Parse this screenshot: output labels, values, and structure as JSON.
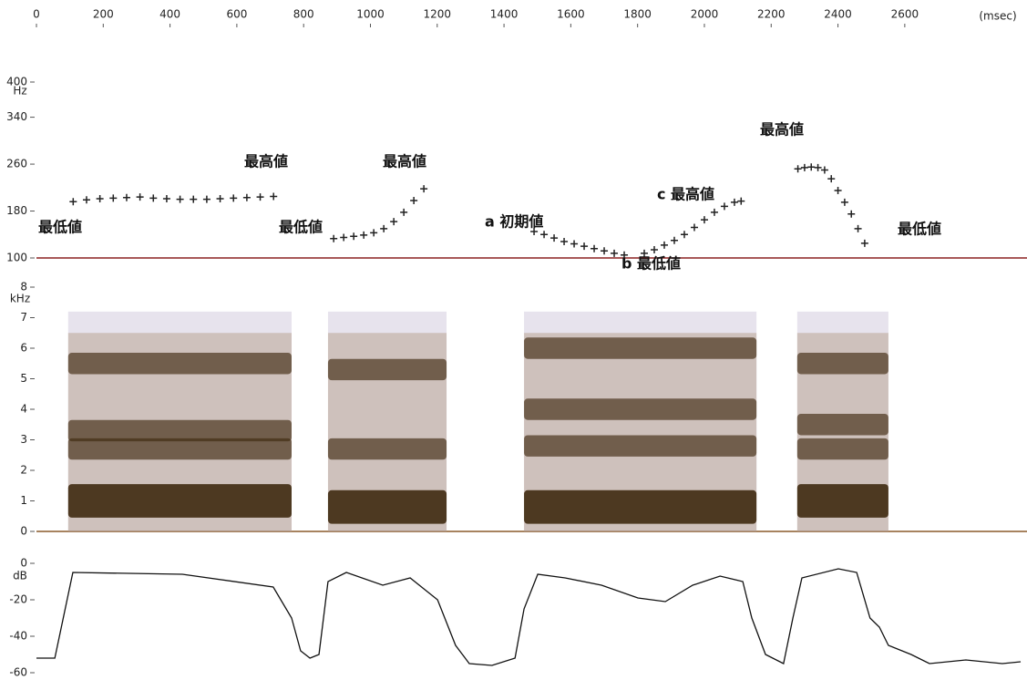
{
  "time_axis": {
    "xlim": [
      0,
      2966
    ],
    "xticks": [
      0,
      200,
      400,
      600,
      800,
      1000,
      1200,
      1400,
      1600,
      1800,
      2000,
      2200,
      2400,
      2600
    ],
    "unit": "(msec)"
  },
  "chart_data": [
    {
      "type": "scatter",
      "ylabel": "Hz",
      "ylim": [
        100,
        400
      ],
      "yticks": [
        100,
        180,
        260,
        340,
        400
      ],
      "series": [
        {
          "color": "#222222",
          "x": [
            110,
            150,
            190,
            230,
            270,
            310,
            350,
            390,
            430,
            470,
            510,
            550,
            590,
            630,
            670,
            710,
            890,
            920,
            950,
            980,
            1010,
            1040,
            1070,
            1100,
            1130,
            1160,
            1490,
            1520,
            1550,
            1580,
            1610,
            1640,
            1670,
            1700,
            1730,
            1760,
            1820,
            1850,
            1880,
            1910,
            1940,
            1970,
            2000,
            2030,
            2060,
            2090,
            2110,
            2280,
            2300,
            2320,
            2340,
            2360,
            2380,
            2400,
            2420,
            2440,
            2460,
            2480
          ],
          "values": [
            196,
            199,
            201,
            202,
            203,
            204,
            202,
            201,
            200,
            200,
            200,
            201,
            202,
            203,
            204,
            205,
            133,
            135,
            137,
            139,
            143,
            150,
            162,
            178,
            198,
            218,
            145,
            140,
            134,
            128,
            124,
            120,
            116,
            112,
            108,
            105,
            108,
            114,
            122,
            130,
            140,
            152,
            165,
            178,
            188,
            195,
            197,
            252,
            254,
            255,
            254,
            250,
            235,
            215,
            195,
            175,
            150,
            125
          ]
        }
      ],
      "annotations": [
        "最低値",
        "最高値",
        "最低値",
        "最高値",
        "a 初期値",
        "b 最低値",
        "c 最高値",
        "最高値",
        "最低値"
      ]
    },
    {
      "type": "spectrogram",
      "ylabel": "kHz",
      "ylim": [
        0,
        8
      ],
      "yticks": [
        0,
        1,
        2,
        3,
        4,
        5,
        6,
        7,
        8
      ],
      "color": "#3f2a10",
      "segments": [
        {
          "x": [
            95,
            764
          ],
          "bands": [
            1.0,
            2.7,
            3.3,
            5.5
          ]
        },
        {
          "x": [
            873,
            1228
          ],
          "bands": [
            0.8,
            2.7,
            5.3
          ]
        },
        {
          "x": [
            1460,
            2156
          ],
          "bands": [
            0.8,
            2.8,
            4.0,
            6.0
          ]
        },
        {
          "x": [
            2278,
            2551
          ],
          "bands": [
            1.0,
            2.7,
            3.5,
            5.5
          ]
        }
      ]
    },
    {
      "type": "line",
      "ylabel": "dB",
      "ylim": [
        -60,
        0
      ],
      "yticks": [
        0,
        -20,
        -40,
        -60
      ],
      "color": "#111111",
      "x": [
        0,
        55,
        109,
        437,
        709,
        764,
        791,
        819,
        846,
        873,
        928,
        1037,
        1119,
        1201,
        1255,
        1296,
        1364,
        1433,
        1460,
        1501,
        1583,
        1692,
        1801,
        1883,
        1965,
        2047,
        2115,
        2142,
        2183,
        2237,
        2265,
        2292,
        2401,
        2456,
        2496,
        2524,
        2551,
        2619,
        2674,
        2783,
        2892,
        2947
      ],
      "values": [
        -52,
        -52,
        -5,
        -6,
        -13,
        -30,
        -48,
        -52,
        -50,
        -10,
        -5,
        -12,
        -8,
        -20,
        -45,
        -55,
        -56,
        -52,
        -25,
        -6,
        -8,
        -12,
        -19,
        -21,
        -12,
        -7,
        -10,
        -30,
        -50,
        -55,
        -30,
        -8,
        -3,
        -5,
        -30,
        -35,
        -45,
        -50,
        -55,
        -53,
        -55,
        -54
      ]
    }
  ]
}
